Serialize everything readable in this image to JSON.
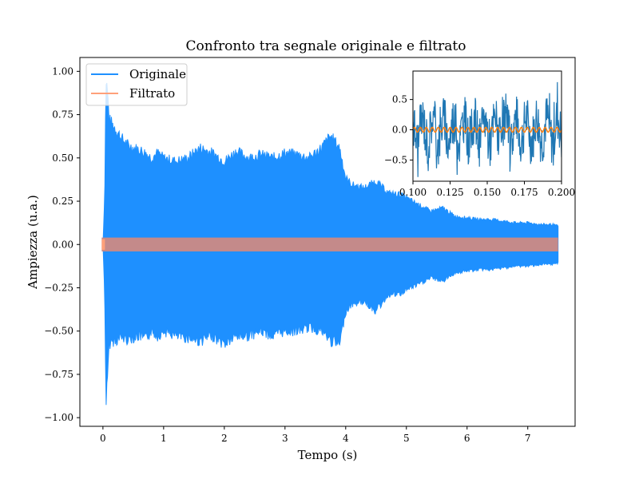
{
  "chart_data": [
    {
      "type": "line",
      "title": "Confronto tra segnale originale e filtrato",
      "xlabel": "Tempo (s)",
      "ylabel": "Ampiezza (u.a.)",
      "xlim": [
        -0.38,
        7.78
      ],
      "ylim": [
        -1.05,
        1.08
      ],
      "xticks": [
        0,
        1,
        2,
        3,
        4,
        5,
        6,
        7
      ],
      "xtick_labels": [
        "0",
        "1",
        "2",
        "3",
        "4",
        "5",
        "6",
        "7"
      ],
      "yticks": [
        -1.0,
        -0.75,
        -0.5,
        -0.25,
        0.0,
        0.25,
        0.5,
        0.75,
        1.0
      ],
      "ytick_labels": [
        "−1.00",
        "−0.75",
        "−0.50",
        "−0.25",
        "0.00",
        "0.25",
        "0.50",
        "0.75",
        "1.00"
      ],
      "grid": false,
      "legend_position": "top-left",
      "series": [
        {
          "name": "Originale",
          "color": "#1e90ff",
          "envelope": {
            "t": [
              0.0,
              0.03,
              0.05,
              0.08,
              0.1,
              0.15,
              0.2,
              0.3,
              0.4,
              0.5,
              0.6,
              0.7,
              0.8,
              0.9,
              1.0,
              1.2,
              1.4,
              1.6,
              1.8,
              2.0,
              2.2,
              2.4,
              2.6,
              2.8,
              3.0,
              3.2,
              3.4,
              3.6,
              3.75,
              3.9,
              4.0,
              4.1,
              4.3,
              4.5,
              4.7,
              4.9,
              5.0,
              5.2,
              5.4,
              5.6,
              5.8,
              6.0,
              6.2,
              6.4,
              6.6,
              6.8,
              7.0,
              7.2,
              7.4,
              7.5
            ],
            "upper": [
              0.0,
              0.3,
              1.0,
              0.9,
              0.75,
              0.72,
              0.7,
              0.64,
              0.6,
              0.58,
              0.57,
              0.55,
              0.52,
              0.55,
              0.52,
              0.5,
              0.52,
              0.58,
              0.55,
              0.5,
              0.56,
              0.52,
              0.54,
              0.52,
              0.55,
              0.54,
              0.52,
              0.58,
              0.65,
              0.58,
              0.4,
              0.36,
              0.34,
              0.38,
              0.31,
              0.3,
              0.28,
              0.24,
              0.2,
              0.22,
              0.17,
              0.16,
              0.15,
              0.15,
              0.14,
              0.13,
              0.13,
              0.12,
              0.12,
              0.11
            ],
            "lower": [
              0.0,
              -0.3,
              -0.95,
              -0.8,
              -0.6,
              -0.58,
              -0.58,
              -0.56,
              -0.57,
              -0.56,
              -0.55,
              -0.57,
              -0.52,
              -0.55,
              -0.52,
              -0.55,
              -0.56,
              -0.58,
              -0.55,
              -0.6,
              -0.55,
              -0.55,
              -0.52,
              -0.55,
              -0.52,
              -0.52,
              -0.5,
              -0.52,
              -0.58,
              -0.6,
              -0.4,
              -0.36,
              -0.34,
              -0.4,
              -0.3,
              -0.3,
              -0.27,
              -0.24,
              -0.2,
              -0.22,
              -0.17,
              -0.16,
              -0.15,
              -0.15,
              -0.14,
              -0.13,
              -0.13,
              -0.12,
              -0.12,
              -0.11
            ]
          }
        },
        {
          "name": "Filtrato",
          "color": "#ffa07a",
          "amplitude": 0.04,
          "t_start": -0.02,
          "t_end": 7.5
        }
      ],
      "overlap_color": "#c48a8a"
    },
    {
      "type": "line",
      "title": "",
      "xlim": [
        0.1,
        0.2
      ],
      "ylim": [
        -0.85,
        0.97
      ],
      "xticks": [
        0.1,
        0.125,
        0.15,
        0.175,
        0.2
      ],
      "xtick_labels": [
        "0.100",
        "0.125",
        "0.150",
        "0.175",
        "0.200"
      ],
      "yticks": [
        -0.5,
        0.0,
        0.5
      ],
      "ytick_labels": [
        "−0.5",
        "0.0",
        "0.5"
      ],
      "grid": false,
      "series": [
        {
          "name": "Originale",
          "color": "#1f77b4",
          "amplitude": 0.55
        },
        {
          "name": "Filtrato",
          "color": "#ff7f0e",
          "amplitude": 0.04,
          "frequency": 250
        }
      ]
    }
  ],
  "legend": {
    "items": [
      {
        "label": "Originale",
        "color": "#1e90ff"
      },
      {
        "label": "Filtrato",
        "color": "#ffa07a"
      }
    ]
  }
}
